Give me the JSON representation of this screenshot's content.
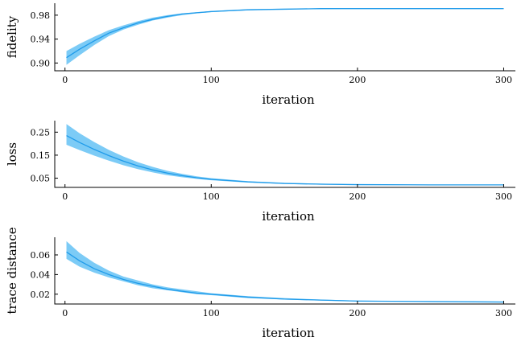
{
  "chart_data": [
    {
      "type": "line",
      "xlabel": "iteration",
      "ylabel": "fidelity",
      "xlim": [
        -7,
        308
      ],
      "ylim": [
        0.887,
        1.0
      ],
      "xticks": [
        0,
        100,
        200,
        300
      ],
      "xtick_labels": [
        "0",
        "100",
        "200",
        "300"
      ],
      "yticks": [
        0.9,
        0.94,
        0.98
      ],
      "ytick_labels": [
        "0.90",
        "0.94",
        "0.98"
      ],
      "grid": false,
      "legend": "none",
      "color": "#1f9bea",
      "band_color": "#7ccbf6",
      "series": [
        {
          "x": [
            1,
            10,
            20,
            30,
            40,
            50,
            60,
            70,
            80,
            90,
            100,
            125,
            150,
            175,
            200,
            250,
            300
          ],
          "y": [
            0.909,
            0.923,
            0.937,
            0.95,
            0.959,
            0.967,
            0.973,
            0.978,
            0.982,
            0.984,
            0.986,
            0.989,
            0.99,
            0.991,
            0.991,
            0.991,
            0.991
          ],
          "lower": [
            0.897,
            0.913,
            0.93,
            0.945,
            0.956,
            0.964,
            0.971,
            0.976,
            0.98,
            0.983,
            0.985,
            0.988,
            0.99,
            0.99,
            0.991,
            0.991,
            0.991
          ],
          "upper": [
            0.92,
            0.932,
            0.944,
            0.955,
            0.963,
            0.97,
            0.976,
            0.98,
            0.983,
            0.985,
            0.987,
            0.99,
            0.991,
            0.991,
            0.992,
            0.992,
            0.992
          ]
        }
      ]
    },
    {
      "type": "line",
      "xlabel": "iteration",
      "ylabel": "loss",
      "xlim": [
        -7,
        308
      ],
      "ylim": [
        0.01,
        0.3
      ],
      "xticks": [
        0,
        100,
        200,
        300
      ],
      "xtick_labels": [
        "0",
        "100",
        "200",
        "300"
      ],
      "yticks": [
        0.05,
        0.15,
        0.25
      ],
      "ytick_labels": [
        "0.05",
        "0.15",
        "0.25"
      ],
      "grid": false,
      "legend": "none",
      "color": "#1f9bea",
      "band_color": "#7ccbf6",
      "series": [
        {
          "x": [
            1,
            10,
            20,
            30,
            40,
            50,
            60,
            70,
            80,
            90,
            100,
            125,
            150,
            175,
            200,
            250,
            300
          ],
          "y": [
            0.235,
            0.205,
            0.175,
            0.148,
            0.124,
            0.103,
            0.086,
            0.072,
            0.061,
            0.052,
            0.045,
            0.034,
            0.027,
            0.024,
            0.022,
            0.021,
            0.021
          ],
          "lower": [
            0.195,
            0.172,
            0.148,
            0.126,
            0.106,
            0.089,
            0.075,
            0.063,
            0.054,
            0.047,
            0.041,
            0.031,
            0.025,
            0.022,
            0.021,
            0.02,
            0.02
          ],
          "upper": [
            0.285,
            0.245,
            0.207,
            0.173,
            0.144,
            0.119,
            0.099,
            0.082,
            0.069,
            0.058,
            0.05,
            0.037,
            0.03,
            0.026,
            0.023,
            0.022,
            0.022
          ]
        }
      ]
    },
    {
      "type": "line",
      "xlabel": "iteration",
      "ylabel": "trace distance",
      "xlim": [
        -7,
        308
      ],
      "ylim": [
        0.01,
        0.078
      ],
      "xticks": [
        0,
        100,
        200,
        300
      ],
      "xtick_labels": [
        "0",
        "100",
        "200",
        "300"
      ],
      "yticks": [
        0.02,
        0.04,
        0.06
      ],
      "ytick_labels": [
        "0.02",
        "0.04",
        "0.06"
      ],
      "grid": false,
      "legend": "none",
      "color": "#1f9bea",
      "band_color": "#7ccbf6",
      "series": [
        {
          "x": [
            1,
            10,
            20,
            30,
            40,
            50,
            60,
            70,
            80,
            90,
            100,
            125,
            150,
            175,
            200,
            250,
            300
          ],
          "y": [
            0.063,
            0.054,
            0.046,
            0.04,
            0.035,
            0.031,
            0.028,
            0.025,
            0.023,
            0.021,
            0.02,
            0.017,
            0.015,
            0.014,
            0.013,
            0.0125,
            0.012
          ],
          "lower": [
            0.056,
            0.048,
            0.042,
            0.037,
            0.033,
            0.029,
            0.026,
            0.024,
            0.022,
            0.02,
            0.019,
            0.016,
            0.0145,
            0.0135,
            0.0128,
            0.0122,
            0.0118
          ],
          "upper": [
            0.074,
            0.062,
            0.052,
            0.044,
            0.038,
            0.034,
            0.03,
            0.027,
            0.025,
            0.023,
            0.021,
            0.018,
            0.016,
            0.0145,
            0.0135,
            0.0128,
            0.0125
          ]
        }
      ]
    }
  ]
}
